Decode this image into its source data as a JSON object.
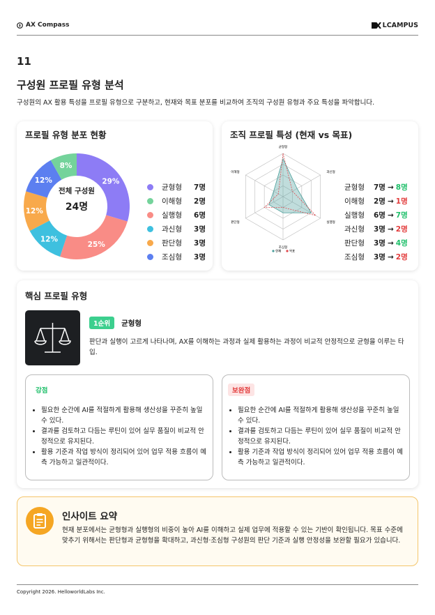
{
  "header": {
    "brand": "AX Compass",
    "logo": "LCAMPUS"
  },
  "section": {
    "number": "11",
    "title": "구성원 프로필 유형 분석",
    "description": "구성원의 AX 활용 특성을 프로필 유형으로 구분하고, 현재와 목표 분포를 비교하여 조직의 구성원 유형과 주요 특성을 파악합니다."
  },
  "distribution": {
    "title": "프로필 유형 분포 현황",
    "center_label": "전체 구성원",
    "center_value": "24명",
    "chart_data": {
      "type": "pie",
      "categories": [
        "균형형",
        "실행형",
        "과신형",
        "판단형",
        "조심형",
        "이해형"
      ],
      "values": [
        29,
        25,
        12,
        12,
        12,
        8
      ],
      "value_labels": [
        "29%",
        "25%",
        "12%",
        "12%",
        "12%",
        "8%"
      ],
      "colors": [
        "#8d7cf5",
        "#f98c86",
        "#3ec0df",
        "#f8a94b",
        "#5c7ff0",
        "#74d39b"
      ]
    },
    "legend": [
      {
        "name": "균형형",
        "count": "7명",
        "color": "#8d7cf5"
      },
      {
        "name": "이해형",
        "count": "2명",
        "color": "#74d39b"
      },
      {
        "name": "실행형",
        "count": "6명",
        "color": "#f98c86"
      },
      {
        "name": "과신형",
        "count": "3명",
        "color": "#3ec0df"
      },
      {
        "name": "판단형",
        "count": "3명",
        "color": "#f8a94b"
      },
      {
        "name": "조심형",
        "count": "3명",
        "color": "#5c7ff0"
      }
    ]
  },
  "comparison": {
    "title": "조직 프로필 특성 (현재 vs 목표)",
    "chart_data": {
      "type": "radar",
      "categories": [
        "균형형",
        "과신형",
        "실행형",
        "조심형",
        "판단형",
        "이해형"
      ],
      "rlim": [
        0,
        8
      ],
      "rticks": [
        2,
        4,
        6,
        8
      ],
      "series": [
        {
          "name": "현재",
          "color": "#4a9e9a",
          "values": [
            7,
            3,
            6,
            3,
            3,
            2
          ]
        },
        {
          "name": "목표",
          "color": "#e0474c",
          "values": [
            8,
            2,
            7,
            2,
            4,
            1
          ]
        }
      ]
    },
    "rows": [
      {
        "name": "균형형",
        "current": "7명",
        "target": "8명",
        "target_color": "#1fbf6a"
      },
      {
        "name": "이해형",
        "current": "2명",
        "target": "1명",
        "target_color": "#e23b3b"
      },
      {
        "name": "실행형",
        "current": "6명",
        "target": "7명",
        "target_color": "#1fbf6a"
      },
      {
        "name": "과신형",
        "current": "3명",
        "target": "2명",
        "target_color": "#e23b3b"
      },
      {
        "name": "판단형",
        "current": "3명",
        "target": "4명",
        "target_color": "#1fbf6a"
      },
      {
        "name": "조심형",
        "current": "3명",
        "target": "2명",
        "target_color": "#e23b3b"
      }
    ]
  },
  "core": {
    "title": "핵심 프로필 유형",
    "rank": "1순위",
    "name": "균형형",
    "description": "판단과 실행이 고르게 나타나며, AX를 이해하는 과정과 실제 활용하는 과정이 비교적 안정적으로 균형을 이루는 타입.",
    "strengths": {
      "title": "강점",
      "items": [
        "필요한 순간에 AI를 적절하게 활용해 생산성을 꾸준히 높일 수 있다.",
        "결과를 검토하고 다듬는 루틴이 있어 실무 품질이 비교적 안정적으로 유지된다.",
        "활용 기준과 작업 방식이 정리되어 있어 업무 적용 흐름이 예측 가능하고 일관적이다."
      ]
    },
    "improvements": {
      "title": "보완점",
      "items": [
        "필요한 순간에 AI를 적절하게 활용해 생산성을 꾸준히 높일 수 있다.",
        "결과를 검토하고 다듬는 루틴이 있어 실무 품질이 비교적 안정적으로 유지된다.",
        "활용 기준과 작업 방식이 정리되어 있어 업무 적용 흐름이 예측 가능하고 일관적이다."
      ]
    }
  },
  "insight": {
    "title": "인사이트 요약",
    "text": "현재 분포에서는 균형형과 실행형의 비중이 높아 AI를 이해하고 실제 업무에 적용할 수 있는 기반이 확인됩니다. 목표 수준에 맞추기 위해서는 판단형과 균형형을 확대하고, 과신형·조심형 구성원의 판단 기준과 실행 안정성을 보완할 필요가 있습니다."
  },
  "footer": {
    "copyright": "Copyright 2026. HelloworldLabs Inc."
  }
}
